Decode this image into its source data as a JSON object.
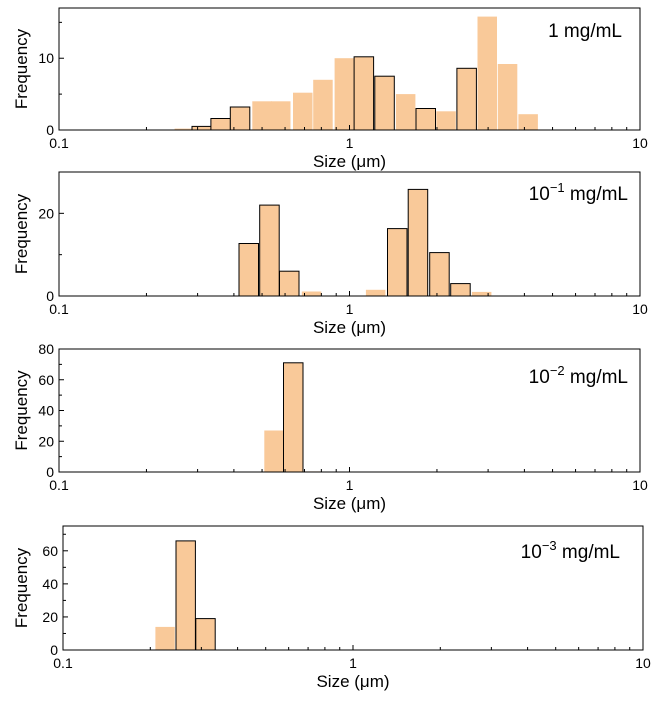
{
  "chart_data": [
    {
      "type": "bar",
      "label": "1 mg/mL",
      "xlabel": "Size (μm)",
      "ylabel": "Frequency",
      "xscale": "log",
      "xlim": [
        0.1,
        10
      ],
      "ylim": [
        0,
        17
      ],
      "xticks": [
        {
          "value": 0.1,
          "label": "0.1"
        },
        {
          "value": 1,
          "label": "1"
        },
        {
          "value": 10,
          "label": "10"
        }
      ],
      "yticks": [
        0,
        10
      ],
      "bars": [
        {
          "x": 0.27,
          "y": 0.2,
          "outlined": false
        },
        {
          "x": 0.31,
          "y": 0.5,
          "outlined": true
        },
        {
          "x": 0.36,
          "y": 1.6,
          "outlined": true
        },
        {
          "x": 0.42,
          "y": 3.2,
          "outlined": true
        },
        {
          "x": 0.5,
          "y": 4.0,
          "outlined": false
        },
        {
          "x": 0.58,
          "y": 4.0,
          "outlined": false
        },
        {
          "x": 0.69,
          "y": 5.2,
          "outlined": false
        },
        {
          "x": 0.81,
          "y": 7.0,
          "outlined": false
        },
        {
          "x": 0.96,
          "y": 10.0,
          "outlined": false
        },
        {
          "x": 1.12,
          "y": 10.2,
          "outlined": true
        },
        {
          "x": 1.32,
          "y": 7.5,
          "outlined": true
        },
        {
          "x": 1.56,
          "y": 5.0,
          "outlined": false
        },
        {
          "x": 1.83,
          "y": 3.0,
          "outlined": true
        },
        {
          "x": 2.15,
          "y": 2.6,
          "outlined": false
        },
        {
          "x": 2.53,
          "y": 8.6,
          "outlined": true
        },
        {
          "x": 2.98,
          "y": 15.8,
          "outlined": false
        },
        {
          "x": 3.5,
          "y": 9.2,
          "outlined": false
        },
        {
          "x": 4.12,
          "y": 2.2,
          "outlined": false
        }
      ]
    },
    {
      "type": "bar",
      "label": "10⁻¹ mg/mL",
      "xlabel": "Size (μm)",
      "ylabel": "Frequency",
      "xscale": "log",
      "xlim": [
        0.1,
        10
      ],
      "ylim": [
        0,
        30
      ],
      "xticks": [
        {
          "value": 0.1,
          "label": "0.1"
        },
        {
          "value": 1,
          "label": "1"
        },
        {
          "value": 10,
          "label": "10"
        }
      ],
      "yticks": [
        0,
        20
      ],
      "bars": [
        {
          "x": 0.45,
          "y": 12.7,
          "outlined": true
        },
        {
          "x": 0.53,
          "y": 22.0,
          "outlined": true
        },
        {
          "x": 0.62,
          "y": 6.0,
          "outlined": true
        },
        {
          "x": 0.74,
          "y": 1.1,
          "outlined": false
        },
        {
          "x": 1.23,
          "y": 1.5,
          "outlined": false
        },
        {
          "x": 1.46,
          "y": 16.3,
          "outlined": true
        },
        {
          "x": 1.72,
          "y": 25.8,
          "outlined": true
        },
        {
          "x": 2.04,
          "y": 10.5,
          "outlined": true
        },
        {
          "x": 2.41,
          "y": 3.0,
          "outlined": true
        },
        {
          "x": 2.85,
          "y": 1.0,
          "outlined": false
        }
      ]
    },
    {
      "type": "bar",
      "label": "10⁻² mg/mL",
      "xlabel": "Size (μm)",
      "ylabel": "Frequency",
      "xscale": "log",
      "xlim": [
        0.1,
        10
      ],
      "ylim": [
        0,
        80
      ],
      "xticks": [
        {
          "value": 0.1,
          "label": "0.1"
        },
        {
          "value": 1,
          "label": "1"
        },
        {
          "value": 10,
          "label": "10"
        }
      ],
      "yticks": [
        0,
        20,
        40,
        60,
        80
      ],
      "bars": [
        {
          "x": 0.55,
          "y": 27,
          "outlined": false
        },
        {
          "x": 0.64,
          "y": 71,
          "outlined": true
        },
        {
          "x": 0.74,
          "y": 0.4,
          "outlined": false
        }
      ]
    },
    {
      "type": "bar",
      "label": "10⁻³ mg/mL",
      "xlabel": "Size (μm)",
      "ylabel": "Frequency",
      "xscale": "log",
      "xlim": [
        0.1,
        10
      ],
      "ylim": [
        0,
        75
      ],
      "xticks": [
        {
          "value": 0.1,
          "label": "0.1"
        },
        {
          "value": 1,
          "label": "1"
        },
        {
          "value": 10,
          "label": "10"
        }
      ],
      "yticks": [
        0,
        20,
        40,
        60
      ],
      "bars": [
        {
          "x": 0.225,
          "y": 14,
          "outlined": false
        },
        {
          "x": 0.265,
          "y": 66,
          "outlined": true
        },
        {
          "x": 0.31,
          "y": 19,
          "outlined": true
        }
      ]
    }
  ],
  "style": {
    "bar_fill": "#f9c999",
    "bar_outline": "#000000",
    "axis_color": "#000000"
  }
}
